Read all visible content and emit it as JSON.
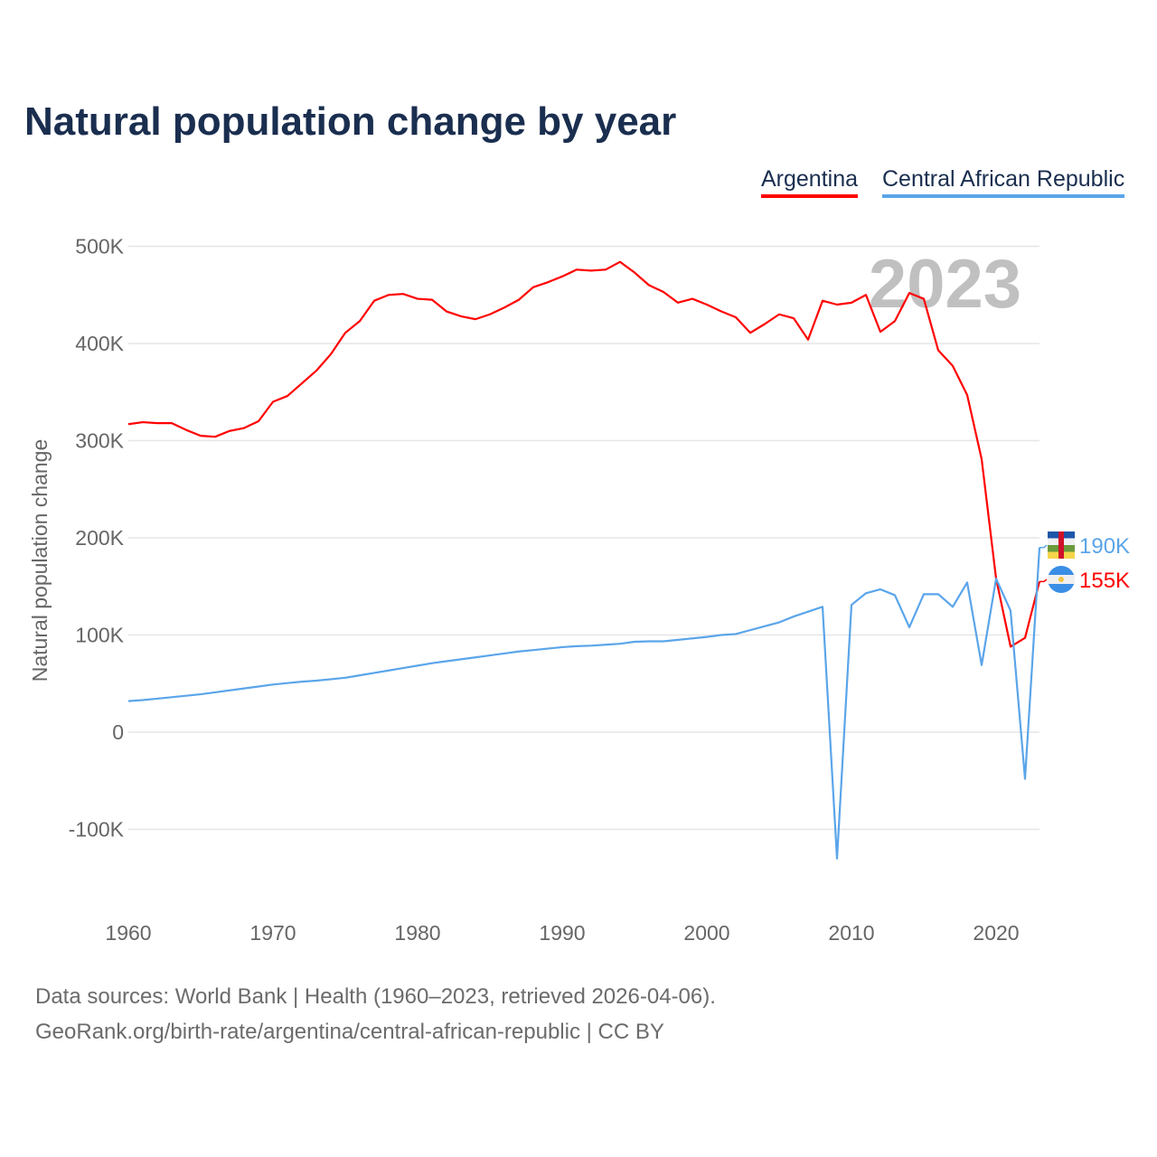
{
  "chart_data": {
    "type": "line",
    "title": "Natural population change by year",
    "ylabel": "Natural population change",
    "xlabel": "",
    "ylim": [
      -150000,
      500000
    ],
    "xlim": [
      1960,
      2023
    ],
    "grid": true,
    "legend_placement": "top-right",
    "year_watermark": "2023",
    "x_ticks": [
      "1960",
      "1970",
      "1980",
      "1990",
      "2000",
      "2010",
      "2020"
    ],
    "y_ticks": [
      {
        "v": 500000,
        "label": "500K"
      },
      {
        "v": 400000,
        "label": "400K"
      },
      {
        "v": 300000,
        "label": "300K"
      },
      {
        "v": 200000,
        "label": "200K"
      },
      {
        "v": 100000,
        "label": "100K"
      },
      {
        "v": 0,
        "label": "0"
      },
      {
        "v": -100000,
        "label": "-100K"
      }
    ],
    "x": [
      1960,
      1961,
      1962,
      1963,
      1964,
      1965,
      1966,
      1967,
      1968,
      1969,
      1970,
      1971,
      1972,
      1973,
      1974,
      1975,
      1976,
      1977,
      1978,
      1979,
      1980,
      1981,
      1982,
      1983,
      1984,
      1985,
      1986,
      1987,
      1988,
      1989,
      1990,
      1991,
      1992,
      1993,
      1994,
      1995,
      1996,
      1997,
      1998,
      1999,
      2000,
      2001,
      2002,
      2003,
      2004,
      2005,
      2006,
      2007,
      2008,
      2009,
      2010,
      2011,
      2012,
      2013,
      2014,
      2015,
      2016,
      2017,
      2018,
      2019,
      2020,
      2021,
      2022,
      2023
    ],
    "series": [
      {
        "name": "Argentina",
        "color": "#ff0000",
        "end_label": "155K",
        "flag": "argentina-flag",
        "values": [
          317000,
          319000,
          318000,
          318000,
          311000,
          305000,
          304000,
          310000,
          313000,
          320000,
          340000,
          346000,
          359000,
          372000,
          389000,
          411000,
          423000,
          444000,
          450000,
          451000,
          446000,
          445000,
          433000,
          428000,
          425000,
          430000,
          437000,
          445000,
          458000,
          463000,
          469000,
          476000,
          475000,
          476000,
          484000,
          473000,
          460000,
          453000,
          442000,
          446000,
          440000,
          433000,
          427000,
          411000,
          420000,
          430000,
          426000,
          404000,
          444000,
          440000,
          442000,
          450000,
          412000,
          423000,
          452000,
          446000,
          393000,
          377000,
          347000,
          281000,
          158000,
          88000,
          97000,
          155000
        ]
      },
      {
        "name": "Central African Republic",
        "color": "#5aa5ea",
        "end_label": "190K",
        "flag": "central-african-republic-flag",
        "values": [
          32000,
          33000,
          34500,
          36000,
          37500,
          39000,
          41000,
          43000,
          45000,
          47000,
          49000,
          50500,
          52000,
          53000,
          54500,
          56000,
          58500,
          61000,
          63500,
          66000,
          68500,
          71000,
          73000,
          75000,
          77000,
          79000,
          81000,
          83000,
          84500,
          86000,
          87500,
          88500,
          89000,
          90000,
          91000,
          93000,
          93500,
          93500,
          95000,
          96500,
          98000,
          100000,
          101000,
          105000,
          109000,
          113000,
          119000,
          124000,
          129000,
          -130000,
          131000,
          143000,
          147000,
          141000,
          108000,
          142000,
          142000,
          129000,
          154000,
          69000,
          158000,
          125000,
          -48000,
          190000
        ]
      }
    ]
  },
  "footer": {
    "line1": "Data sources: World Bank | Health (1960–2023, retrieved 2026-04-06).",
    "line2": "GeoRank.org/birth-rate/argentina/central-african-republic | CC BY"
  }
}
